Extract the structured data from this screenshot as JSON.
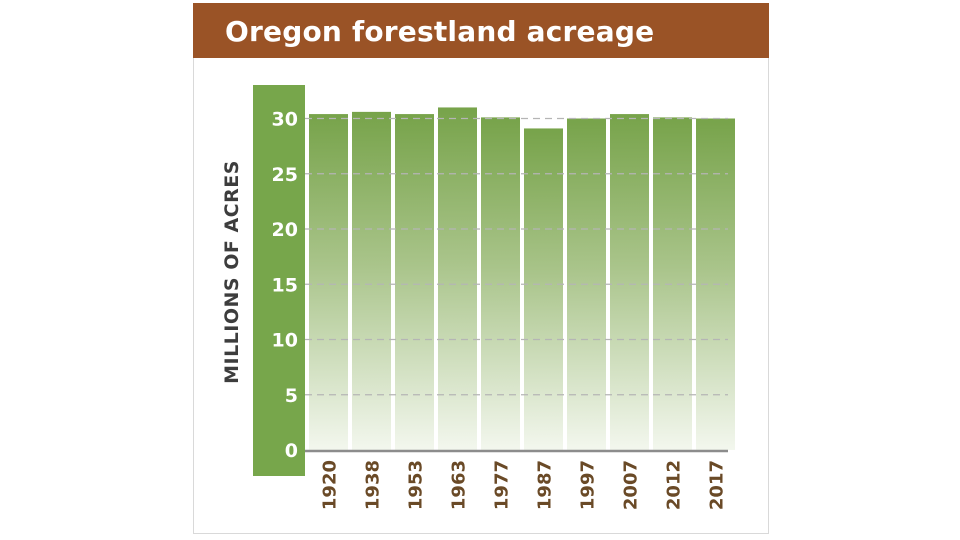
{
  "colors": {
    "title_bar": "#9a5326",
    "axis_band": "#77a64b",
    "bar_top": "#77a34a",
    "bar_bottom": "#f3f7ee",
    "category_text": "#6a4a27",
    "ylabel_text": "#3d3d3d",
    "gridline": "#b5b5b5"
  },
  "chart_data": {
    "type": "bar",
    "title": "Oregon forestland acreage",
    "xlabel": "",
    "ylabel": "MILLIONS OF ACRES",
    "categories": [
      "1920",
      "1938",
      "1953",
      "1963",
      "1977",
      "1987",
      "1997",
      "2007",
      "2012",
      "2017"
    ],
    "values": [
      30.4,
      30.6,
      30.4,
      31.0,
      30.1,
      29.1,
      30.0,
      30.4,
      30.1,
      30.0
    ],
    "ylim": [
      0,
      30
    ],
    "yticks": [
      "0",
      "5",
      "10",
      "15",
      "20",
      "25",
      "30"
    ],
    "grid": true,
    "legend": "none"
  }
}
